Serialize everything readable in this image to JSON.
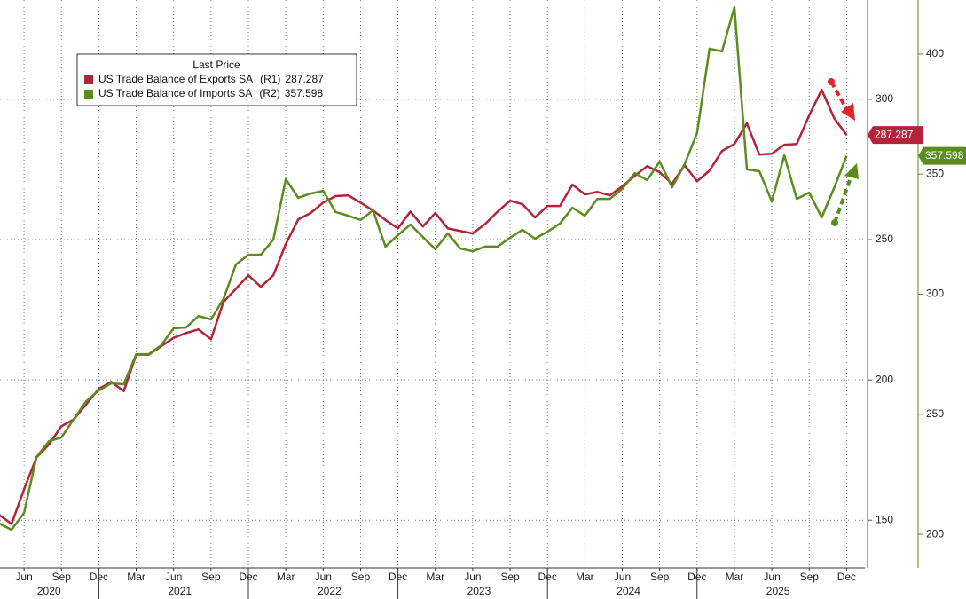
{
  "chart_data": {
    "type": "line",
    "legend_title": "Last Price",
    "categories": [
      null,
      null,
      "Jun",
      null,
      null,
      "Sep",
      null,
      null,
      "Dec",
      null,
      null,
      "Mar",
      null,
      null,
      "Jun",
      null,
      null,
      "Sep",
      null,
      null,
      "Dec",
      null,
      null,
      "Mar",
      null,
      null,
      "Jun",
      null,
      null,
      "Sep",
      null,
      null,
      "Dec",
      null,
      null,
      "Mar",
      null,
      null,
      "Jun",
      null,
      null,
      "Sep",
      null,
      null,
      "Dec",
      null,
      null,
      "Mar",
      null,
      null,
      "Jun",
      null,
      null,
      "Sep",
      null,
      null,
      "Dec",
      null,
      null,
      "Mar",
      null,
      null,
      "Jun",
      null,
      null,
      "Sep",
      null,
      null,
      "Dec"
    ],
    "years": [
      "2020",
      "2021",
      "2022",
      "2023",
      "2024",
      "2025"
    ],
    "series": [
      {
        "name": "US Trade Balance of Exports SA",
        "axis_tag": "(R1)",
        "color": "#b3233b",
        "axis": "y",
        "values": [
          151.9,
          148.7,
          161,
          172.4,
          177,
          183.5,
          186,
          191.4,
          196.8,
          199.3,
          196,
          209,
          209,
          212,
          215,
          216.7,
          218,
          214.5,
          227.8,
          232.5,
          237.3,
          233.2,
          237.3,
          248.4,
          257.2,
          259.5,
          263.2,
          265.5,
          265.8,
          263.2,
          260.4,
          257,
          254,
          260,
          254.7,
          259.5,
          254,
          253.1,
          252.2,
          255.6,
          260,
          263.9,
          262.6,
          257.9,
          262,
          262,
          269.6,
          266.1,
          267,
          265.8,
          269,
          272.7,
          276.2,
          274,
          269.9,
          276.5,
          270.8,
          274.6,
          281.6,
          284.1,
          291.4,
          280.3,
          280.6,
          283.8,
          284.1,
          294.3,
          303.4,
          293.3,
          287.287
        ]
      },
      {
        "name": "US Trade Balance of Imports SA",
        "axis_tag": "(R2)",
        "color": "#5b8c1e",
        "axis": "y2",
        "values": [
          204.5,
          201.9,
          208.9,
          232.2,
          238.8,
          240.3,
          248.1,
          255.5,
          259.9,
          262.9,
          262.5,
          275,
          275,
          278.7,
          285.8,
          286.1,
          290.9,
          289.5,
          298,
          312.4,
          316.4,
          316.4,
          322.7,
          347.9,
          340.1,
          341.9,
          343,
          334.2,
          332.7,
          330.9,
          334.9,
          319.8,
          324.6,
          329,
          323.8,
          318.7,
          325.3,
          319,
          317.9,
          319.8,
          319.8,
          323.5,
          326.8,
          323.1,
          326,
          329.4,
          336,
          332.7,
          339.7,
          339.7,
          343.8,
          350.4,
          347.5,
          355.2,
          344.5,
          354.1,
          367.1,
          402.2,
          401.1,
          419.5,
          351.9,
          351.2,
          338.6,
          357.8,
          339.7,
          342.3,
          332,
          344.2,
          357.598
        ]
      }
    ],
    "ylim": [
      133,
      335.4
    ],
    "yticks": [
      150,
      200,
      250,
      300
    ],
    "y2lim": [
      186,
      422.5
    ],
    "y2ticks": [
      200,
      250,
      300,
      350,
      400
    ],
    "grid": true
  }
}
